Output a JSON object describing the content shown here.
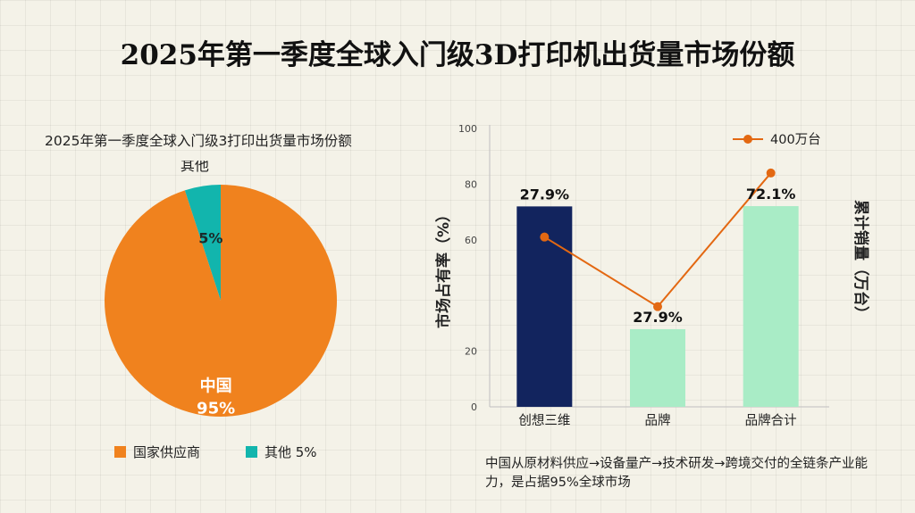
{
  "title": "2025年第一季度全球入门级3D打印机出货量市场份额",
  "colors": {
    "china": "#f0821e",
    "others": "#12b5ad",
    "bar_highlight": "#12245e",
    "bar": "#a9ecc6",
    "line": "#e36812"
  },
  "chart_data": [
    {
      "type": "pie",
      "title": "2025年第一季度全球入门级3打印出货量市场份额",
      "slices": [
        {
          "label": "中国",
          "value": 95,
          "value_label": "95%"
        },
        {
          "label": "其他",
          "value": 5,
          "value_label": "5%"
        }
      ],
      "legend": [
        {
          "label": "国家供应商"
        },
        {
          "label": "其他 5%"
        }
      ],
      "legend_position": "bottom"
    },
    {
      "type": "bar",
      "categories": [
        "创想三维",
        "品牌",
        "品牌合计"
      ],
      "values": [
        27.9,
        27.9,
        72.1
      ],
      "bar_value_labels": [
        "27.9%",
        "27.9%",
        "72.1%"
      ],
      "ylabel": "市场占有率（%）",
      "y2label": "累计销量（万台）",
      "ylim": [
        0,
        100
      ],
      "yticks": [
        0,
        20,
        60,
        80,
        100
      ],
      "ytick_labels": [
        "0",
        "20",
        "60",
        "80",
        "100"
      ],
      "line_series": {
        "name": "400万台",
        "values": [
          61,
          36,
          84
        ]
      },
      "legend_position": "top-right",
      "grid": false,
      "note": "中国从原材料供应→设备量产→技术研发→跨境交付的全链条产业能力，是占据95%全球市场"
    }
  ]
}
